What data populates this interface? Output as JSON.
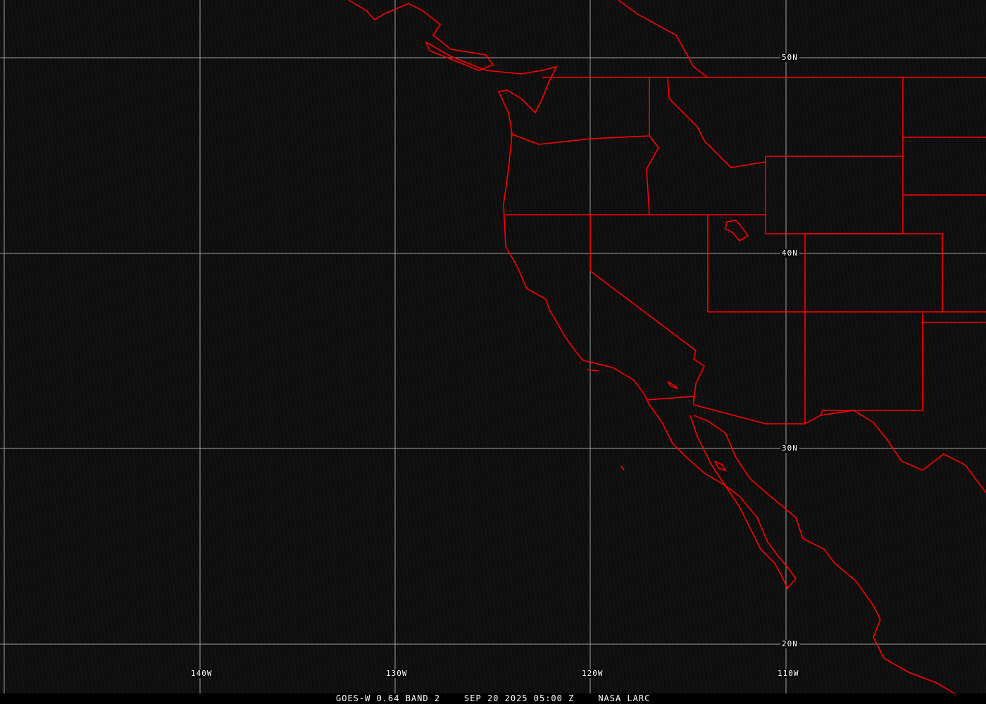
{
  "map": {
    "projection_grid_color": "#a0a0a0",
    "boundary_color": "#ff0000",
    "latitude_labels": [
      "50N",
      "40N",
      "30N",
      "20N"
    ],
    "longitude_labels": [
      "140W",
      "130W",
      "120W",
      "110W"
    ]
  },
  "caption": {
    "satellite": "GOES-W 0.64 BAND 2",
    "datetime": "SEP 20 2025 05:00 Z",
    "source": "NASA LARC"
  }
}
